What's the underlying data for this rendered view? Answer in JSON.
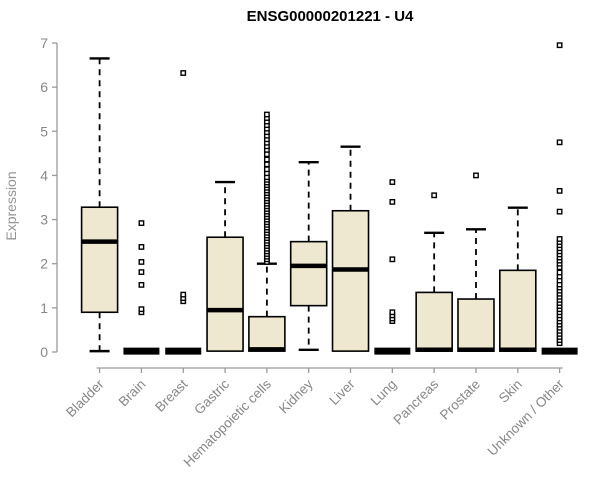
{
  "chart_data": {
    "type": "boxplot",
    "title": "ENSG00000201221 - U4",
    "ylabel": "Expression",
    "ylim": [
      0,
      7
    ],
    "yticks": [
      0,
      1,
      2,
      3,
      4,
      5,
      6,
      7
    ],
    "grid": false,
    "legend": "none",
    "colors": {
      "box_fill": "#EDE8CF",
      "box_stroke": "#000000",
      "median": "#000000",
      "axis": "#9A9A9A",
      "tick_label": "#878787",
      "title": "#000000",
      "outlier_fill": "#FFFFFF"
    },
    "categories": [
      "Bladder",
      "Brain",
      "Breast",
      "Gastric",
      "Hematopoietic cells",
      "Kidney",
      "Liver",
      "Lung",
      "Pancreas",
      "Prostate",
      "Skin",
      "Unknown / Other"
    ],
    "boxes": [
      {
        "label": "Bladder",
        "low": 0.02,
        "q1": 0.9,
        "median": 2.5,
        "q3": 3.28,
        "high": 6.65,
        "outliers": []
      },
      {
        "label": "Brain",
        "low": 0.02,
        "q1": 0.0,
        "median": 0.02,
        "q3": 0.04,
        "high": 0.02,
        "outliers": [
          0.9,
          0.97,
          1.52,
          1.81,
          2.04,
          2.38,
          2.92
        ]
      },
      {
        "label": "Breast",
        "low": 0.02,
        "q1": 0.0,
        "median": 0.02,
        "q3": 0.04,
        "high": 0.02,
        "outliers": [
          1.15,
          1.22,
          1.3,
          6.32
        ]
      },
      {
        "label": "Gastric",
        "low": 0.02,
        "q1": 0.02,
        "median": 0.95,
        "q3": 2.6,
        "high": 3.85,
        "outliers": []
      },
      {
        "label": "Hematopoietic cells",
        "low": 0.02,
        "q1": 0.02,
        "median": 0.06,
        "q3": 0.8,
        "high": 2.0,
        "outliers": [
          2.04,
          2.1,
          2.16,
          2.22,
          2.28,
          2.34,
          2.4,
          2.46,
          2.52,
          2.58,
          2.64,
          2.7,
          2.76,
          2.82,
          2.88,
          2.94,
          3.0,
          3.06,
          3.12,
          3.18,
          3.24,
          3.3,
          3.36,
          3.42,
          3.48,
          3.54,
          3.6,
          3.66,
          3.72,
          3.78,
          3.84,
          3.9,
          3.96,
          4.05,
          4.14,
          4.25,
          4.36,
          4.48,
          4.58,
          4.66,
          4.74,
          4.82,
          4.9,
          4.98,
          5.06,
          5.14,
          5.22,
          5.3,
          5.38
        ]
      },
      {
        "label": "Kidney",
        "low": 0.05,
        "q1": 1.05,
        "median": 1.95,
        "q3": 2.5,
        "high": 4.3,
        "outliers": []
      },
      {
        "label": "Liver",
        "low": 0.02,
        "q1": 0.02,
        "median": 1.87,
        "q3": 3.2,
        "high": 4.65,
        "outliers": []
      },
      {
        "label": "Lung",
        "low": 0.02,
        "q1": 0.0,
        "median": 0.02,
        "q3": 0.04,
        "high": 0.02,
        "outliers": [
          0.7,
          0.76,
          0.83,
          0.9,
          2.1,
          3.4,
          3.85
        ]
      },
      {
        "label": "Pancreas",
        "low": 0.02,
        "q1": 0.02,
        "median": 0.05,
        "q3": 1.35,
        "high": 2.7,
        "outliers": [
          3.55
        ]
      },
      {
        "label": "Prostate",
        "low": 0.02,
        "q1": 0.02,
        "median": 0.05,
        "q3": 1.2,
        "high": 2.78,
        "outliers": [
          4.0
        ]
      },
      {
        "label": "Skin",
        "low": 0.02,
        "q1": 0.02,
        "median": 0.05,
        "q3": 1.85,
        "high": 3.27,
        "outliers": []
      },
      {
        "label": "Unknown / Other",
        "low": 0.02,
        "q1": 0.0,
        "median": 0.02,
        "q3": 0.04,
        "high": 0.02,
        "outliers": [
          0.2,
          0.27,
          0.34,
          0.41,
          0.48,
          0.55,
          0.62,
          0.69,
          0.76,
          0.83,
          0.9,
          0.97,
          1.04,
          1.11,
          1.18,
          1.25,
          1.32,
          1.39,
          1.46,
          1.53,
          1.62,
          1.71,
          1.8,
          1.92,
          2.0,
          2.07,
          2.14,
          2.21,
          2.28,
          2.35,
          2.42,
          2.49,
          2.56,
          3.18,
          3.65,
          4.75,
          6.95
        ]
      }
    ]
  }
}
